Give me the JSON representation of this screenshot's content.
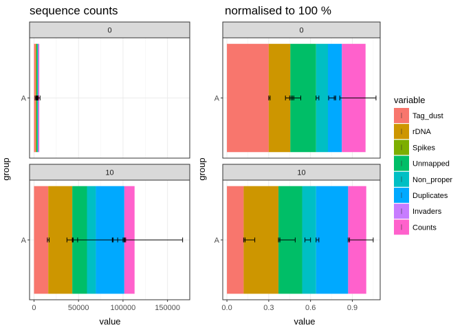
{
  "colors": {
    "Tag_dust": "#F8766D",
    "rDNA": "#CD9600",
    "Spikes": "#7CAE00",
    "Unmapped": "#00BE67",
    "Non_proper": "#00BFC4",
    "Duplicates": "#00A9FF",
    "Invaders": "#C77CFF",
    "Counts": "#FF61CC"
  },
  "legend": {
    "title": "variable",
    "items": [
      "Tag_dust",
      "rDNA",
      "Spikes",
      "Unmapped",
      "Non_proper",
      "Duplicates",
      "Invaders",
      "Counts"
    ]
  },
  "chart_data": [
    {
      "type": "bar",
      "orientation": "horizontal",
      "stacked": true,
      "title": "sequence counts",
      "xlabel": "value",
      "ylabel": "group",
      "xlim": [
        -5000,
        175000
      ],
      "xticks": [
        0,
        50000,
        100000,
        150000
      ],
      "xtick_labels": [
        "0",
        "50000",
        "100000",
        "150000"
      ],
      "categories": [
        "A"
      ],
      "panels": [
        {
          "facet": "0",
          "segments": [
            {
              "variable": "Tag_dust",
              "value": 1800,
              "err_lo": 1200,
              "err_hi": 2400
            },
            {
              "variable": "rDNA",
              "value": 900,
              "err_lo": 2400,
              "err_hi": 3000
            },
            {
              "variable": "Spikes",
              "value": 0,
              "err_lo": 2700,
              "err_hi": 2800
            },
            {
              "variable": "Unmapped",
              "value": 1100,
              "err_lo": 3400,
              "err_hi": 4100
            },
            {
              "variable": "Non_proper",
              "value": 500,
              "err_lo": 3600,
              "err_hi": 4300
            },
            {
              "variable": "Duplicates",
              "value": 400,
              "err_lo": 3900,
              "err_hi": 4600
            },
            {
              "variable": "Invaders",
              "value": 0,
              "err_lo": 4600,
              "err_hi": 4700
            },
            {
              "variable": "Counts",
              "value": 1200,
              "err_lo": 4400,
              "err_hi": 6800
            }
          ]
        },
        {
          "facet": "10",
          "segments": [
            {
              "variable": "Tag_dust",
              "value": 16000,
              "err_lo": 15000,
              "err_hi": 17000
            },
            {
              "variable": "rDNA",
              "value": 27000,
              "err_lo": 37000,
              "err_hi": 49000
            },
            {
              "variable": "Spikes",
              "value": 0,
              "err_lo": 43000,
              "err_hi": 43500
            },
            {
              "variable": "Unmapped",
              "value": 16500,
              "err_lo": 44000,
              "err_hi": 89000
            },
            {
              "variable": "Non_proper",
              "value": 10000,
              "err_lo": 88000,
              "err_hi": 94000
            },
            {
              "variable": "Duplicates",
              "value": 32000,
              "err_lo": 88000,
              "err_hi": 103000
            },
            {
              "variable": "Invaders",
              "value": 0,
              "err_lo": 101000,
              "err_hi": 102000
            },
            {
              "variable": "Counts",
              "value": 11500,
              "err_lo": 100000,
              "err_hi": 167000
            }
          ]
        }
      ]
    },
    {
      "type": "bar",
      "orientation": "horizontal",
      "stacked": true,
      "title": "normalised to 100 %",
      "xlabel": "value",
      "ylabel": "group",
      "xlim": [
        -0.03,
        1.1
      ],
      "xticks": [
        0,
        0.3,
        0.6,
        0.9
      ],
      "xtick_labels": [
        "0.0",
        "0.3",
        "0.6",
        "0.9"
      ],
      "categories": [
        "A"
      ],
      "panels": [
        {
          "facet": "0",
          "segments": [
            {
              "variable": "Tag_dust",
              "value": 0.3,
              "err_lo": 0.3,
              "err_hi": 0.31
            },
            {
              "variable": "rDNA",
              "value": 0.155,
              "err_lo": 0.42,
              "err_hi": 0.48
            },
            {
              "variable": "Spikes",
              "value": 0,
              "err_lo": 0.45,
              "err_hi": 0.46
            },
            {
              "variable": "Unmapped",
              "value": 0.185,
              "err_lo": 0.47,
              "err_hi": 0.53
            },
            {
              "variable": "Non_proper",
              "value": 0.085,
              "err_lo": 0.64,
              "err_hi": 0.66
            },
            {
              "variable": "Duplicates",
              "value": 0.1,
              "err_lo": 0.73,
              "err_hi": 0.78
            },
            {
              "variable": "Invaders",
              "value": 0,
              "err_lo": 0.77,
              "err_hi": 0.78
            },
            {
              "variable": "Counts",
              "value": 0.17,
              "err_lo": 0.81,
              "err_hi": 1.07
            }
          ]
        },
        {
          "facet": "10",
          "segments": [
            {
              "variable": "Tag_dust",
              "value": 0.12,
              "err_lo": 0.12,
              "err_hi": 0.13
            },
            {
              "variable": "rDNA",
              "value": 0.25,
              "err_lo": 0.13,
              "err_hi": 0.2
            },
            {
              "variable": "Spikes",
              "value": 0,
              "err_lo": 0.37,
              "err_hi": 0.38
            },
            {
              "variable": "Unmapped",
              "value": 0.17,
              "err_lo": 0.38,
              "err_hi": 0.49
            },
            {
              "variable": "Non_proper",
              "value": 0.1,
              "err_lo": 0.56,
              "err_hi": 0.6
            },
            {
              "variable": "Duplicates",
              "value": 0.23,
              "err_lo": 0.64,
              "err_hi": 0.66
            },
            {
              "variable": "Invaders",
              "value": 0,
              "err_lo": 0.87,
              "err_hi": 0.88
            },
            {
              "variable": "Counts",
              "value": 0.13,
              "err_lo": 0.88,
              "err_hi": 1.05
            }
          ]
        }
      ]
    }
  ]
}
